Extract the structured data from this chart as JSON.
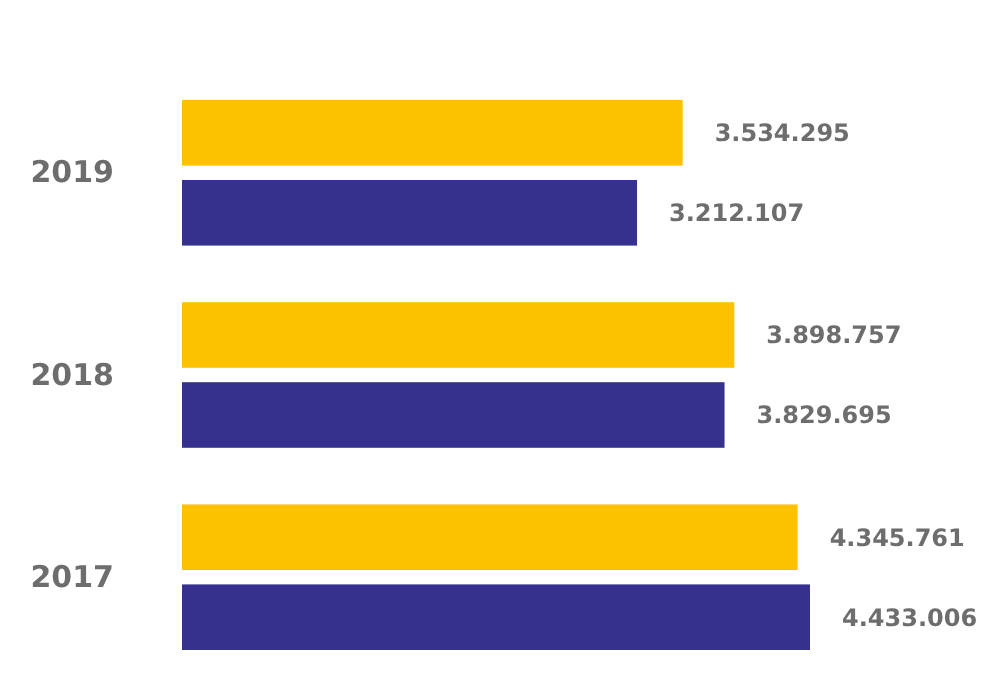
{
  "chart_data": {
    "type": "bar",
    "orientation": "horizontal",
    "categories": [
      "2019",
      "2018",
      "2017"
    ],
    "tick_labels": "y",
    "grid": false,
    "series": [
      {
        "color": "#fcc200",
        "values": [
          3534295,
          3898757,
          4345761
        ],
        "value_labels": [
          "3.534.295",
          "3.898.757",
          "4.345.761"
        ]
      },
      {
        "color": "#36318f",
        "values": [
          3212107,
          3829695,
          4433006
        ],
        "value_labels": [
          "3.212.107",
          "3.829.695",
          "4.433.006"
        ]
      }
    ]
  }
}
